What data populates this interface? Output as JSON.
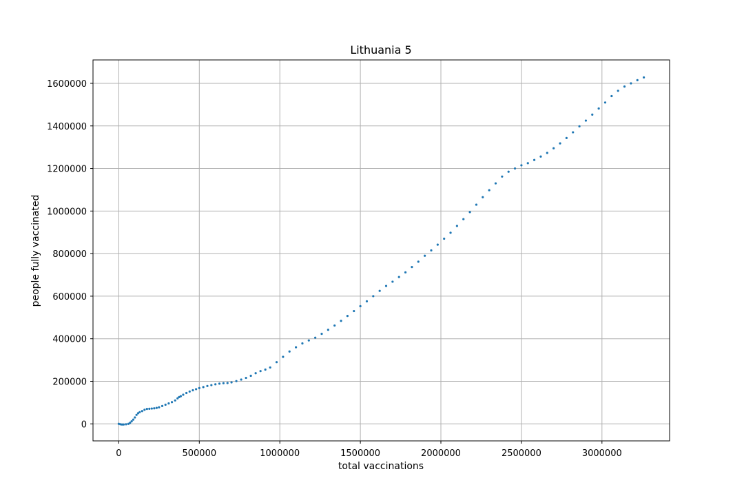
{
  "chart_data": {
    "type": "scatter",
    "title": "Lithuania 5",
    "xlabel": "total vaccinations",
    "ylabel": "people fully vaccinated",
    "xlim": [
      -160000,
      3420000
    ],
    "ylim": [
      -80000,
      1710000
    ],
    "x_ticks": [
      0,
      500000,
      1000000,
      1500000,
      2000000,
      2500000,
      3000000
    ],
    "x_tick_labels": [
      "0",
      "500000",
      "1000000",
      "1500000",
      "2000000",
      "2500000",
      "3000000"
    ],
    "y_ticks": [
      0,
      200000,
      400000,
      600000,
      800000,
      1000000,
      1200000,
      1400000,
      1600000
    ],
    "y_tick_labels": [
      "0",
      "200000",
      "400000",
      "600000",
      "800000",
      "1000000",
      "1200000",
      "1400000",
      "1600000"
    ],
    "grid": true,
    "marker_color": "#1f77b4",
    "series": [
      {
        "x": [
          0,
          10000,
          20000,
          30000,
          45000,
          60000,
          70000,
          80000,
          90000,
          100000,
          110000,
          120000,
          130000,
          145000,
          160000,
          175000,
          190000,
          205000,
          220000,
          235000,
          250000,
          270000,
          290000,
          310000,
          330000,
          350000,
          365000,
          375000,
          385000,
          400000,
          420000,
          440000,
          460000,
          480000,
          500000,
          525000,
          550000,
          575000,
          600000,
          625000,
          650000,
          675000,
          700000,
          730000,
          760000,
          790000,
          820000,
          850000,
          880000,
          910000,
          940000,
          980000,
          1020000,
          1060000,
          1100000,
          1140000,
          1180000,
          1220000,
          1260000,
          1300000,
          1340000,
          1380000,
          1420000,
          1460000,
          1500000,
          1540000,
          1580000,
          1620000,
          1660000,
          1700000,
          1740000,
          1780000,
          1820000,
          1860000,
          1900000,
          1940000,
          1980000,
          2020000,
          2060000,
          2100000,
          2140000,
          2180000,
          2220000,
          2260000,
          2300000,
          2340000,
          2380000,
          2420000,
          2460000,
          2500000,
          2540000,
          2580000,
          2620000,
          2660000,
          2700000,
          2740000,
          2780000,
          2820000,
          2860000,
          2900000,
          2940000,
          2980000,
          3020000,
          3060000,
          3100000,
          3140000,
          3180000,
          3220000,
          3260000
        ],
        "y": [
          0,
          -2000,
          -3000,
          -3000,
          -2000,
          0,
          5000,
          12000,
          20000,
          30000,
          42000,
          50000,
          55000,
          60000,
          66000,
          70000,
          71000,
          72000,
          73000,
          75000,
          78000,
          84000,
          90000,
          96000,
          102000,
          110000,
          120000,
          126000,
          130000,
          137000,
          145000,
          152000,
          158000,
          163000,
          168000,
          173000,
          178000,
          182000,
          186000,
          189000,
          191000,
          192000,
          195000,
          201000,
          208000,
          216000,
          226000,
          238000,
          248000,
          255000,
          265000,
          290000,
          315000,
          340000,
          360000,
          378000,
          392000,
          405000,
          423000,
          442000,
          462000,
          484000,
          507000,
          530000,
          553000,
          576000,
          600000,
          625000,
          648000,
          668000,
          690000,
          712000,
          737000,
          762000,
          790000,
          815000,
          842000,
          870000,
          898000,
          930000,
          962000,
          995000,
          1030000,
          1065000,
          1098000,
          1130000,
          1162000,
          1185000,
          1200000,
          1215000,
          1225000,
          1240000,
          1256000,
          1273000,
          1295000,
          1318000,
          1343000,
          1370000,
          1398000,
          1425000,
          1453000,
          1482000,
          1510000,
          1540000,
          1565000,
          1585000,
          1600000,
          1615000,
          1628000
        ]
      }
    ]
  }
}
